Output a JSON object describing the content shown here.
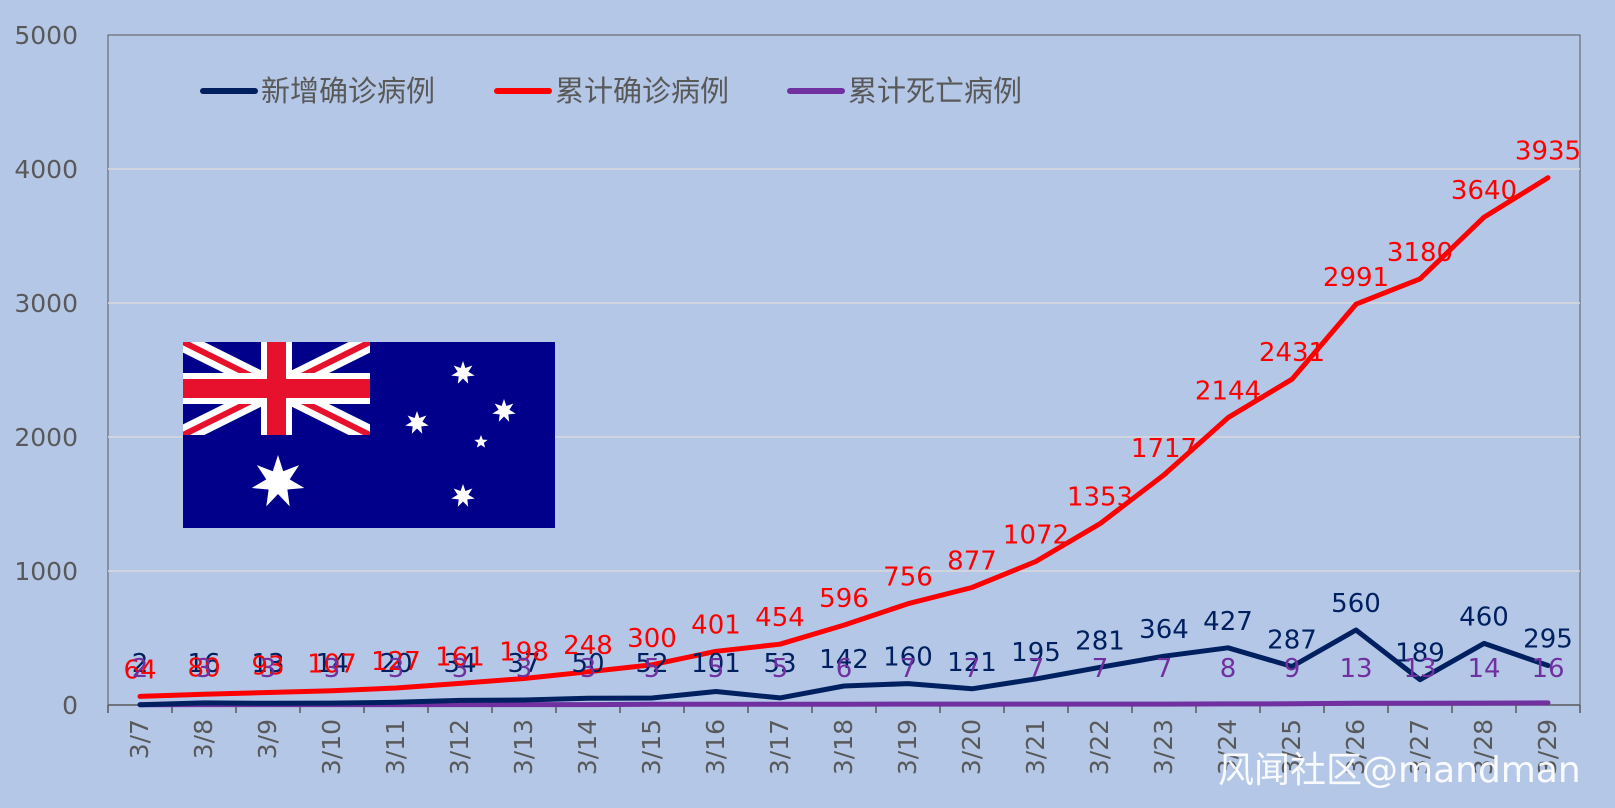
{
  "chart_data": {
    "type": "line",
    "title": "",
    "xlabel": "",
    "ylabel": "",
    "ylim": [
      0,
      5000
    ],
    "yticks": [
      0,
      1000,
      2000,
      3000,
      4000,
      5000
    ],
    "grid": "horizontal",
    "legend_position": "top-left",
    "categories": [
      "3/7",
      "3/8",
      "3/9",
      "3/10",
      "3/11",
      "3/12",
      "3/13",
      "3/14",
      "3/15",
      "3/16",
      "3/17",
      "3/18",
      "3/19",
      "3/20",
      "3/21",
      "3/22",
      "3/23",
      "3/24",
      "3/25",
      "3/26",
      "3/27",
      "3/28",
      "3/29"
    ],
    "series": [
      {
        "name": "新增确诊病例",
        "color": "#002060",
        "values": [
          2,
          16,
          13,
          14,
          20,
          34,
          37,
          50,
          52,
          101,
          53,
          142,
          160,
          121,
          195,
          281,
          364,
          427,
          287,
          560,
          189,
          460,
          295
        ]
      },
      {
        "name": "累计确诊病例",
        "color": "#ff0000",
        "values": [
          64,
          80,
          93,
          107,
          127,
          161,
          198,
          248,
          300,
          401,
          454,
          596,
          756,
          877,
          1072,
          1353,
          1717,
          2144,
          2431,
          2991,
          3180,
          3640,
          3935
        ]
      },
      {
        "name": "累计死亡病例",
        "color": "#7030a0",
        "values": [
          2,
          3,
          3,
          3,
          3,
          3,
          3,
          3,
          5,
          5,
          5,
          6,
          7,
          7,
          7,
          7,
          7,
          8,
          9,
          13,
          13,
          14,
          16
        ]
      }
    ]
  },
  "decorations": {
    "flag_icon": "australia-flag-icon",
    "watermark": "风闻社区@mandman"
  }
}
